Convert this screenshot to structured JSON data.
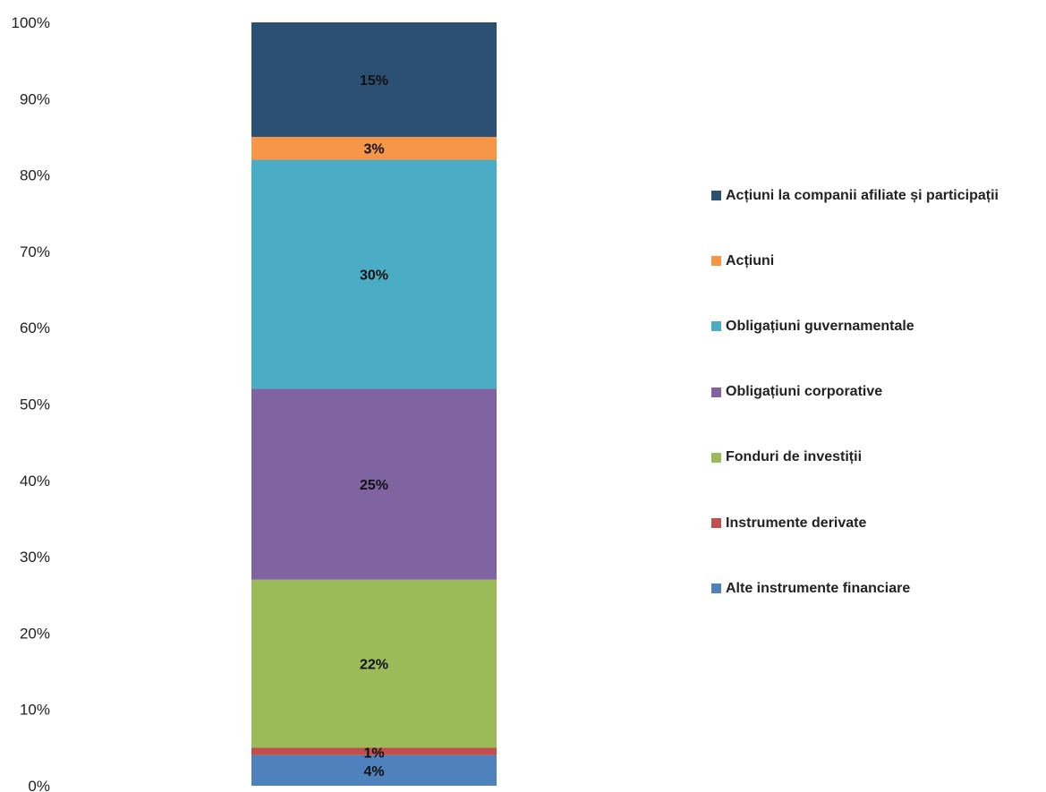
{
  "chart_data": {
    "type": "bar",
    "stacked": true,
    "categories": [
      ""
    ],
    "ylim": [
      0,
      100
    ],
    "yticks": [
      "0%",
      "10%",
      "20%",
      "30%",
      "40%",
      "50%",
      "60%",
      "70%",
      "80%",
      "90%",
      "100%"
    ],
    "grid": false,
    "legend_position": "right",
    "series": [
      {
        "name": "Alte instrumente financiare",
        "values": [
          4
        ],
        "label": "4%",
        "color": "#4f81bd"
      },
      {
        "name": "Instrumente derivate",
        "values": [
          1
        ],
        "label": "1%",
        "color": "#c0504d"
      },
      {
        "name": "Fonduri de investiții",
        "values": [
          22
        ],
        "label": "22%",
        "color": "#9bbb59"
      },
      {
        "name": "Obligațiuni corporative",
        "values": [
          25
        ],
        "label": "25%",
        "color": "#8064a2"
      },
      {
        "name": "Obligațiuni guvernamentale",
        "values": [
          30
        ],
        "label": "30%",
        "color": "#4bacc6"
      },
      {
        "name": "Acțiuni",
        "values": [
          3
        ],
        "label": "3%",
        "color": "#f79646"
      },
      {
        "name": "Acțiuni la companii afiliate și participații",
        "values": [
          15
        ],
        "label": "15%",
        "color": "#2c4f74"
      }
    ]
  }
}
